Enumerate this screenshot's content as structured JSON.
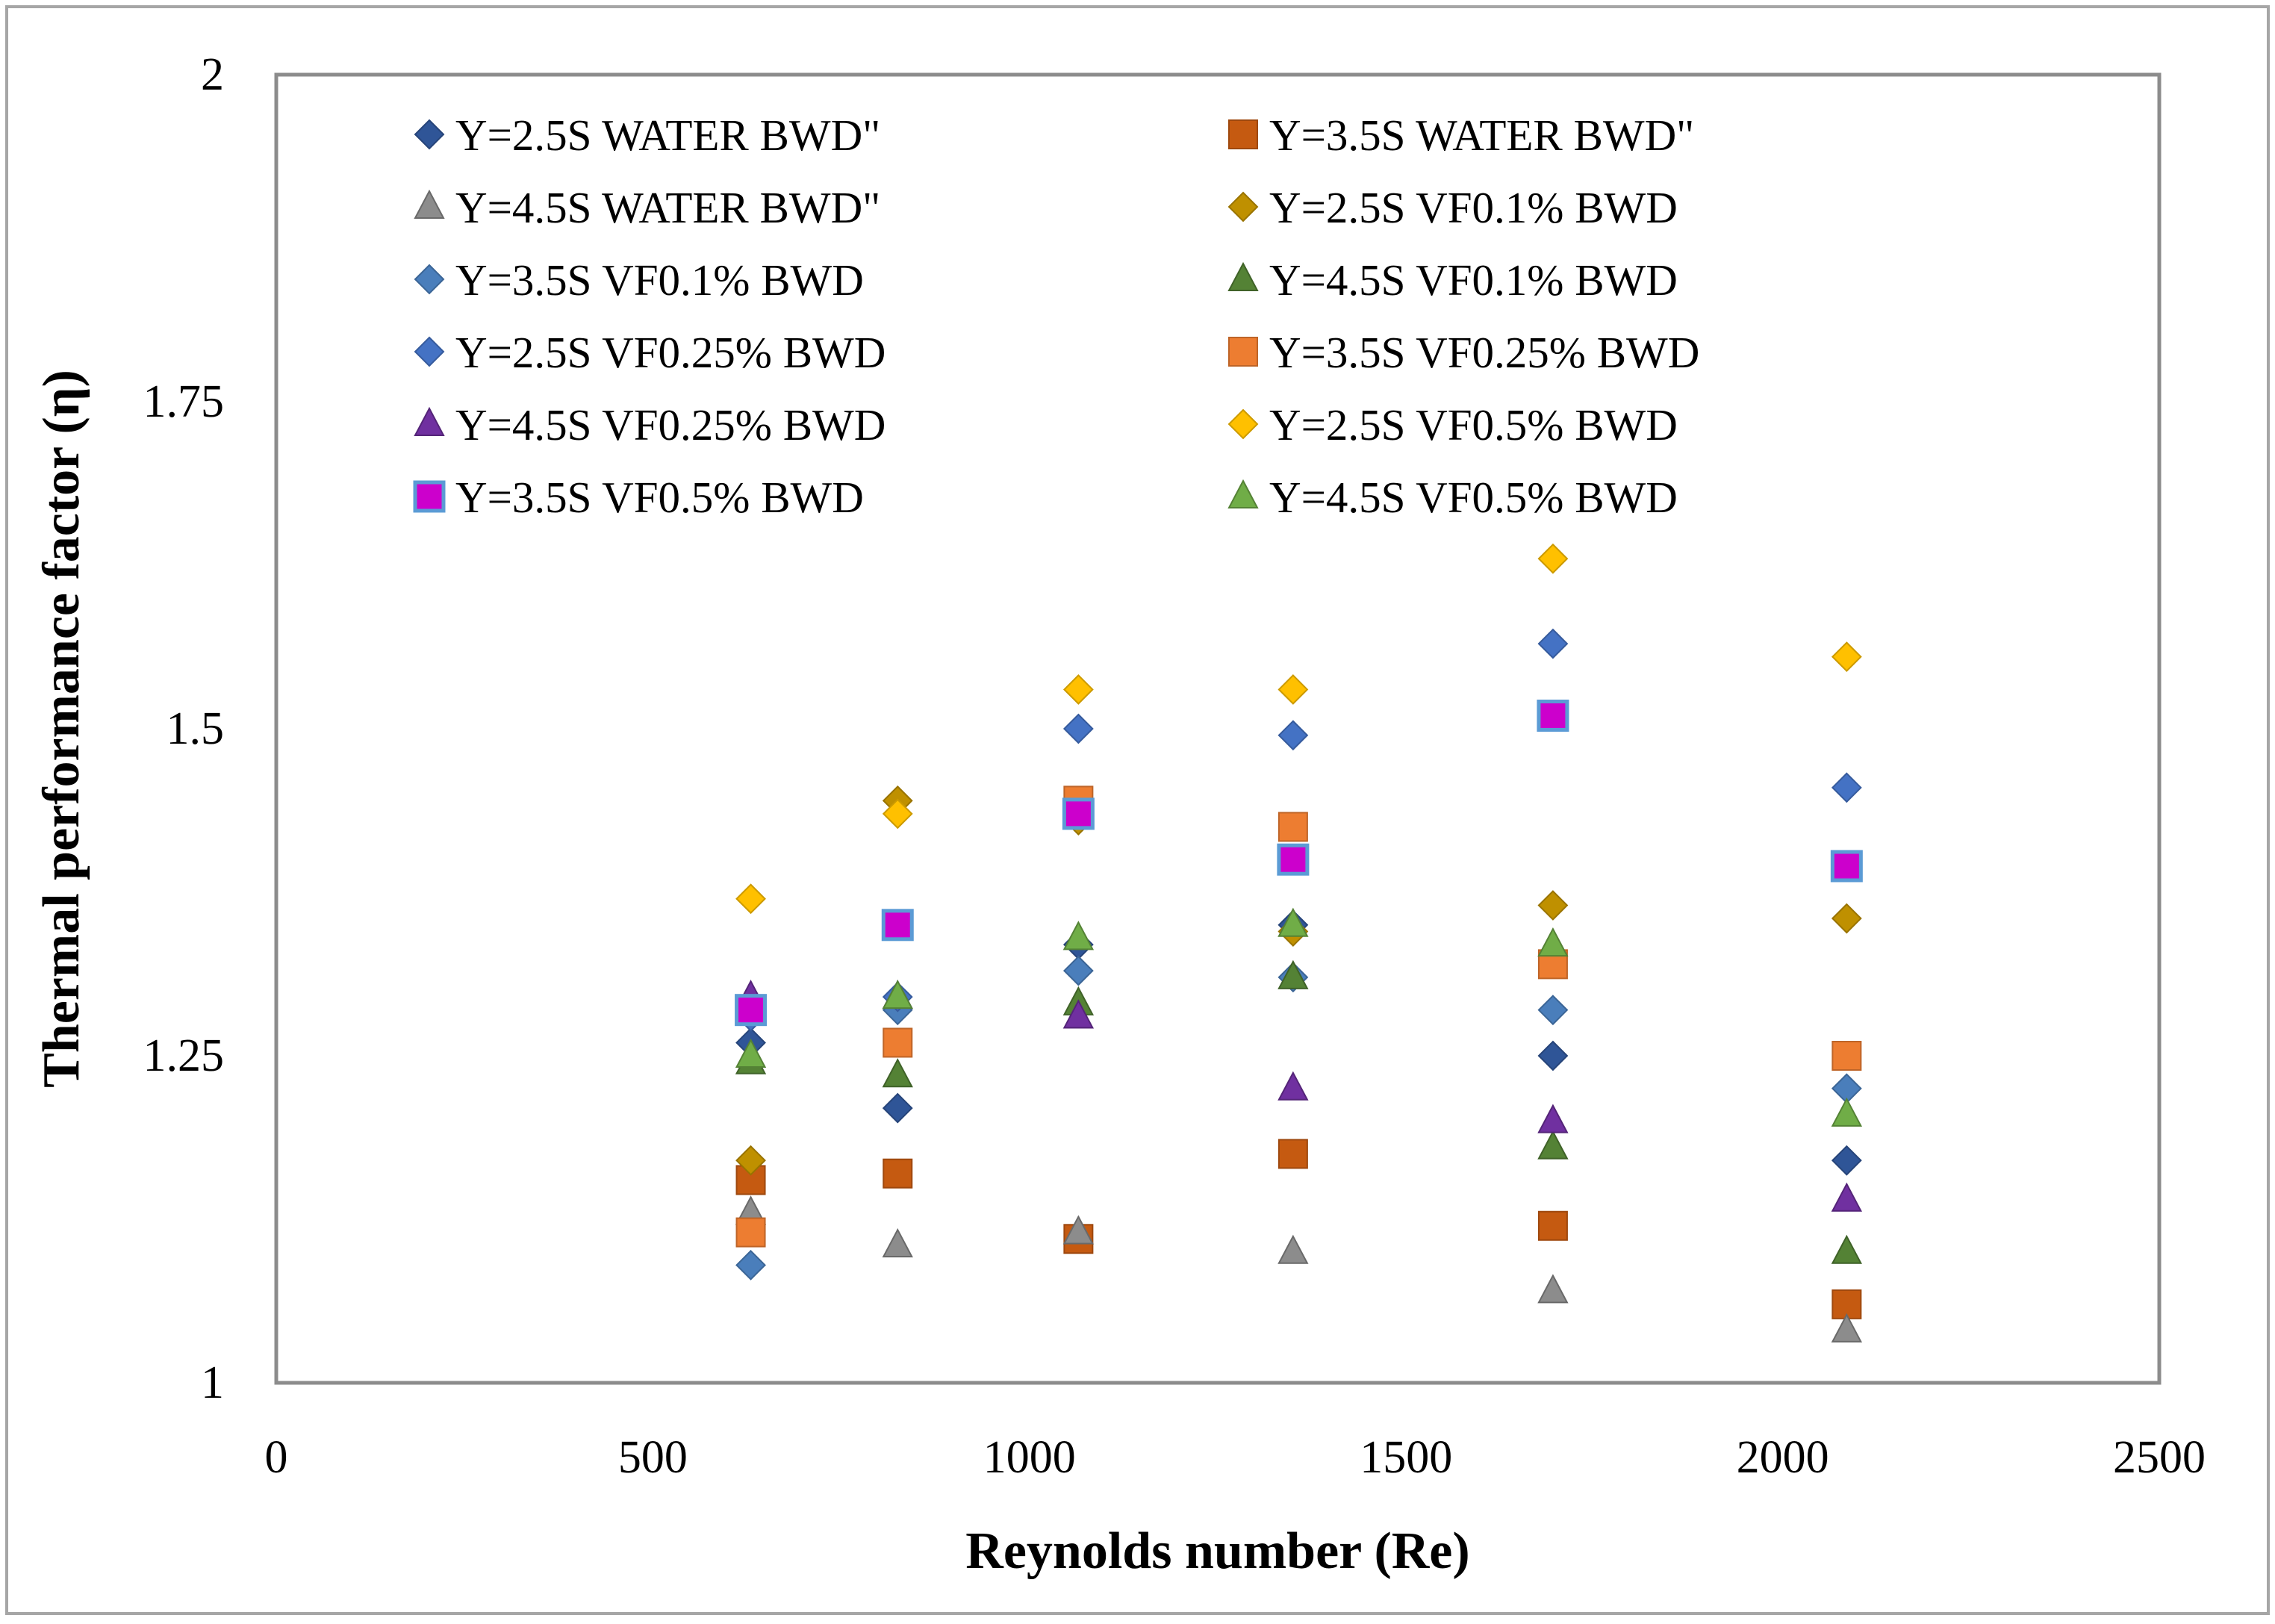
{
  "chart_data": {
    "type": "scatter",
    "title": "",
    "xlabel": "Reynolds number (Re)",
    "ylabel": "Thermal performance factor (η)",
    "xlim": [
      0,
      2500
    ],
    "ylim": [
      1,
      2
    ],
    "xticks": [
      0,
      500,
      1000,
      1500,
      2000,
      2500
    ],
    "yticks": [
      1,
      1.25,
      1.5,
      1.75,
      2
    ],
    "xtick_labels": [
      "0",
      "500",
      "1000",
      "1500",
      "2000",
      "2500"
    ],
    "ytick_labels": [
      "1",
      "1.25",
      "1.5",
      "1.75",
      "2"
    ],
    "grid": false,
    "legend_position": "top",
    "x": [
      630,
      825,
      1065,
      1350,
      1695,
      2085
    ],
    "series": [
      {
        "name": "Y=2.5S WATER BWD\"",
        "marker": "diamond",
        "color": "#2F5597",
        "values": [
          1.26,
          1.21,
          1.335,
          1.35,
          1.25,
          1.17
        ]
      },
      {
        "name": "Y=3.5S WATER BWD\"",
        "marker": "square",
        "color": "#C55A11",
        "values": [
          1.155,
          1.16,
          1.11,
          1.175,
          1.12,
          1.06
        ]
      },
      {
        "name": "Y=4.5S WATER BWD\"",
        "marker": "triangle",
        "color": "#8C8C8C",
        "values": [
          1.13,
          1.105,
          1.115,
          1.1,
          1.07,
          1.04
        ]
      },
      {
        "name": "Y=2.5S VF0.1% BWD",
        "marker": "diamond",
        "color": "#BF9000",
        "values": [
          1.17,
          1.445,
          1.43,
          1.345,
          1.365,
          1.355
        ]
      },
      {
        "name": "Y=3.5S VF0.1% BWD",
        "marker": "diamond",
        "color": "#4A7EBB",
        "values": [
          1.09,
          1.285,
          1.315,
          1.31,
          1.285,
          1.225
        ]
      },
      {
        "name": "Y=4.5S VF0.1% BWD",
        "marker": "triangle",
        "color": "#548235",
        "values": [
          1.245,
          1.235,
          1.29,
          1.31,
          1.18,
          1.1
        ]
      },
      {
        "name": "Y=2.5S VF0.25% BWD",
        "marker": "diamond",
        "color": "#4472C4",
        "values": [
          1.28,
          1.295,
          1.5,
          1.495,
          1.565,
          1.455
        ]
      },
      {
        "name": "Y=3.5S VF0.25% BWD",
        "marker": "square",
        "color": "#ED7D31",
        "values": [
          1.115,
          1.26,
          1.445,
          1.425,
          1.32,
          1.25
        ]
      },
      {
        "name": "Y=4.5S VF0.25% BWD",
        "marker": "triangle",
        "color": "#7030A0",
        "values": [
          1.295,
          1.295,
          1.28,
          1.225,
          1.2,
          1.14
        ]
      },
      {
        "name": "Y=2.5S VF0.5% BWD",
        "marker": "diamond",
        "color": "#FFC000",
        "values": [
          1.37,
          1.435,
          1.53,
          1.53,
          1.63,
          1.555
        ]
      },
      {
        "name": "Y=3.5S VF0.5% BWD",
        "marker": "square-outlined",
        "color": "#CC00CC",
        "values": [
          1.285,
          1.35,
          1.435,
          1.4,
          1.51,
          1.395
        ]
      },
      {
        "name": "Y=4.5S VF0.5% BWD",
        "marker": "triangle",
        "color": "#70AD47",
        "values": [
          1.25,
          1.295,
          1.34,
          1.35,
          1.335,
          1.205
        ]
      }
    ]
  }
}
